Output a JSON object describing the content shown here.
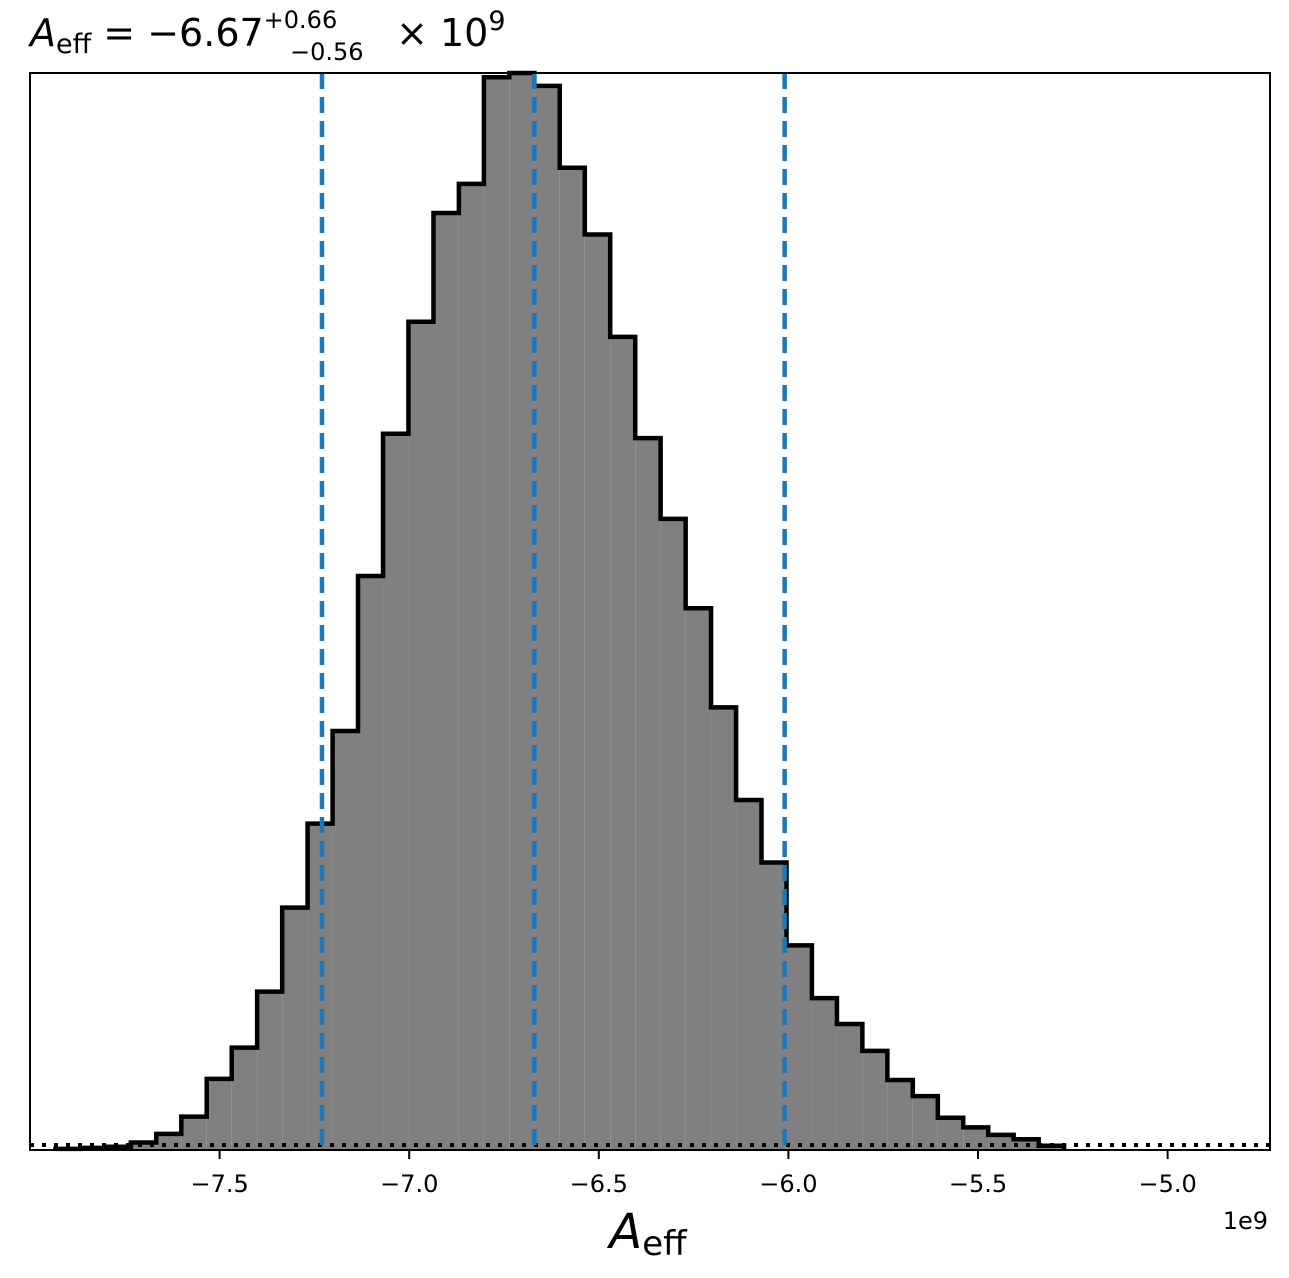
{
  "chart_data": {
    "type": "histogram",
    "title": {
      "symbol": "A",
      "subscript": "eff",
      "equals": " = ",
      "value": "−6.67",
      "upper": "+0.66",
      "lower": "−0.56",
      "times": " × 10",
      "exponent": "9"
    },
    "xlabel": {
      "symbol": "A",
      "subscript": "eff"
    },
    "ylabel": "",
    "x_offset_label": "1e9",
    "xlim": [
      -8.0,
      -4.73
    ],
    "ylim": [
      0,
      1.0
    ],
    "xticks": [
      -7.5,
      -7.0,
      -6.5,
      -6.0,
      -5.5,
      -5.0
    ],
    "xtick_labels": [
      "−7.5",
      "−7.0",
      "−6.5",
      "−6.0",
      "−5.5",
      "−5.0"
    ],
    "grid": false,
    "bin_edges": [
      -7.933,
      -7.867,
      -7.8,
      -7.734,
      -7.667,
      -7.601,
      -7.534,
      -7.468,
      -7.401,
      -7.335,
      -7.268,
      -7.202,
      -7.135,
      -7.069,
      -7.002,
      -6.936,
      -6.869,
      -6.803,
      -6.736,
      -6.67,
      -6.603,
      -6.537,
      -6.47,
      -6.404,
      -6.337,
      -6.271,
      -6.204,
      -6.138,
      -6.071,
      -6.005,
      -5.938,
      -5.872,
      -5.805,
      -5.739,
      -5.672,
      -5.606,
      -5.539,
      -5.473,
      -5.406,
      -5.34,
      -5.273
    ],
    "counts": [
      0.001,
      0.002,
      0.003,
      0.007,
      0.015,
      0.031,
      0.066,
      0.095,
      0.147,
      0.225,
      0.303,
      0.389,
      0.533,
      0.665,
      0.769,
      0.87,
      0.897,
      0.996,
      1.0,
      0.988,
      0.912,
      0.85,
      0.755,
      0.661,
      0.586,
      0.503,
      0.411,
      0.325,
      0.267,
      0.19,
      0.141,
      0.117,
      0.092,
      0.065,
      0.05,
      0.03,
      0.021,
      0.014,
      0.01,
      0.004
    ],
    "fill_color": "#808080",
    "edge_color": "#000000",
    "vlines": [
      {
        "x": -7.23,
        "label": ""
      },
      {
        "x": -6.67,
        "label": ""
      },
      {
        "x": -6.01,
        "label": ""
      }
    ],
    "vline_color": "#1f77b4",
    "baseline_style": "dotted"
  }
}
